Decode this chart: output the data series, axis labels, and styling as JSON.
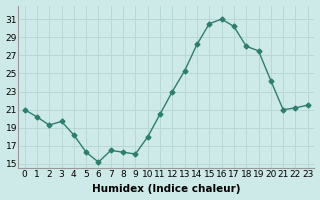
{
  "x": [
    0,
    1,
    2,
    3,
    4,
    5,
    6,
    7,
    8,
    9,
    10,
    11,
    12,
    13,
    14,
    15,
    16,
    17,
    18,
    19,
    20,
    21,
    22,
    23
  ],
  "y": [
    21.0,
    20.2,
    19.3,
    19.7,
    18.2,
    16.3,
    15.2,
    16.5,
    16.3,
    16.1,
    18.0,
    20.5,
    23.0,
    25.3,
    28.2,
    30.5,
    31.0,
    30.2,
    28.0,
    27.5,
    24.2,
    21.0,
    21.2,
    21.5
  ],
  "line_color": "#2e7d6e",
  "marker": "D",
  "marker_size": 2.5,
  "bg_color": "#cdeae8",
  "grid_color": "#b8d8d6",
  "xlabel": "Humidex (Indice chaleur)",
  "ylabel": "",
  "ylim": [
    14.5,
    32.5
  ],
  "yticks": [
    15,
    17,
    19,
    21,
    23,
    25,
    27,
    29,
    31
  ],
  "xticks": [
    0,
    1,
    2,
    3,
    4,
    5,
    6,
    7,
    8,
    9,
    10,
    11,
    12,
    13,
    14,
    15,
    16,
    17,
    18,
    19,
    20,
    21,
    22,
    23
  ],
  "xtick_labels": [
    "0",
    "1",
    "2",
    "3",
    "4",
    "5",
    "6",
    "7",
    "8",
    "9",
    "10",
    "11",
    "12",
    "13",
    "14",
    "15",
    "16",
    "17",
    "18",
    "19",
    "20",
    "21",
    "22",
    "23"
  ],
  "title": "",
  "line_width": 1.0,
  "tick_fontsize": 6.5,
  "xlabel_fontsize": 7.5,
  "xlabel_fontweight": "bold"
}
